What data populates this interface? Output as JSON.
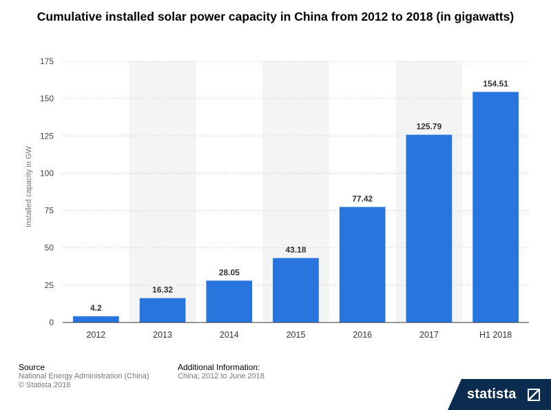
{
  "chart_data": {
    "type": "bar",
    "title": "Cumulative installed solar power capacity in China from 2012 to 2018 (in gigawatts)",
    "xlabel": "",
    "ylabel": "Installed capacity in GW",
    "categories": [
      "2012",
      "2013",
      "2014",
      "2015",
      "2016",
      "2017",
      "H1 2018"
    ],
    "values": [
      4.2,
      16.32,
      28.05,
      43.18,
      77.42,
      125.79,
      154.51
    ],
    "value_labels": [
      "4.2",
      "16.32",
      "28.05",
      "43.18",
      "77.42",
      "125.79",
      "154.51"
    ],
    "yticks": [
      0,
      25,
      50,
      75,
      100,
      125,
      150,
      175
    ],
    "ylim": [
      0,
      175
    ],
    "grid": true,
    "bar_color": "#2876dd",
    "band_color": "#f4f4f4"
  },
  "footer": {
    "source_heading": "Source",
    "source_lines": [
      "National Energy Administration (China)",
      "© Statista 2018"
    ],
    "info_heading": "Additional Information:",
    "info_text": "China; 2012 to June 2018"
  },
  "brand": {
    "name": "statista",
    "bg_color": "#0c2c4f"
  }
}
